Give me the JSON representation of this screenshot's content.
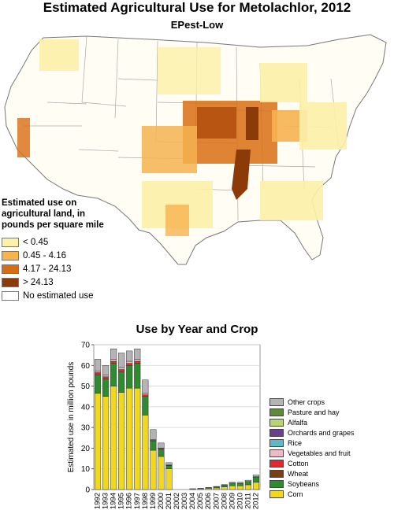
{
  "title": "Estimated Agricultural Use for Metolachlor, 2012",
  "subtitle": "EPest-Low",
  "map_legend": {
    "title_lines": [
      "Estimated use on",
      "agricultural land, in",
      "pounds per square mile"
    ],
    "items": [
      {
        "label": "< 0.45",
        "color": "#fdf0a8"
      },
      {
        "label": "0.45 - 4.16",
        "color": "#f6b350"
      },
      {
        "label": "4.17 - 24.13",
        "color": "#d96d12"
      },
      {
        "label": "> 24.13",
        "color": "#8c3a08"
      },
      {
        "label": "No estimated use",
        "color": "#ffffff"
      }
    ]
  },
  "chart_data": {
    "type": "bar",
    "stacked": true,
    "title": "Use by Year and Crop",
    "xlabel": "",
    "ylabel": "Estimated use in million pounds",
    "ylim": [
      0,
      70
    ],
    "yticks": [
      0,
      10,
      20,
      30,
      40,
      50,
      60,
      70
    ],
    "grid": true,
    "legend_position": "right",
    "categories": [
      "1992",
      "1993",
      "1994",
      "1995",
      "1996",
      "1997",
      "1998",
      "1999",
      "2000",
      "2001",
      "2002",
      "2003",
      "2004",
      "2005",
      "2006",
      "2007",
      "2008",
      "2009",
      "2010",
      "2011",
      "2012"
    ],
    "series": [
      {
        "name": "Corn",
        "color": "#f2d81a",
        "values": [
          46.5,
          45,
          50,
          47,
          49,
          49,
          36,
          19,
          16,
          10,
          0,
          0,
          0.3,
          0.4,
          0.6,
          0.8,
          1.3,
          1.8,
          1.8,
          2.3,
          3.5
        ]
      },
      {
        "name": "Soybeans",
        "color": "#2e8b2e",
        "values": [
          9,
          8.5,
          11,
          10,
          11,
          12,
          9,
          4.5,
          3.5,
          1.5,
          0,
          0,
          0.1,
          0.2,
          0.3,
          0.6,
          0.9,
          1.3,
          1.2,
          1.6,
          2.5
        ]
      },
      {
        "name": "Wheat",
        "color": "#7a3e12",
        "values": [
          0,
          0,
          0,
          0,
          0,
          0,
          0,
          0,
          0,
          0,
          0,
          0,
          0,
          0,
          0,
          0,
          0,
          0,
          0,
          0,
          0
        ]
      },
      {
        "name": "Cotton",
        "color": "#e0282e",
        "values": [
          1,
          1,
          1,
          1,
          1,
          1,
          0.8,
          0.3,
          0.3,
          0.2,
          0,
          0,
          0,
          0,
          0,
          0,
          0,
          0,
          0,
          0,
          0.1
        ]
      },
      {
        "name": "Vegetables and fruit",
        "color": "#f0b8c4",
        "values": [
          0.8,
          0.8,
          1,
          1,
          1,
          1,
          0.8,
          0.4,
          0.3,
          0.2,
          0,
          0,
          0,
          0,
          0,
          0,
          0,
          0,
          0,
          0,
          0.1
        ]
      },
      {
        "name": "Rice",
        "color": "#5fb8c8",
        "values": [
          0,
          0,
          0,
          0,
          0,
          0,
          0,
          0,
          0,
          0,
          0,
          0,
          0,
          0,
          0,
          0,
          0,
          0,
          0,
          0,
          0
        ]
      },
      {
        "name": "Orchards and grapes",
        "color": "#6a3f8f",
        "values": [
          0,
          0,
          0,
          0,
          0,
          0,
          0,
          0,
          0,
          0,
          0,
          0,
          0,
          0,
          0,
          0,
          0,
          0,
          0,
          0,
          0
        ]
      },
      {
        "name": "Alfalfa",
        "color": "#b8d670",
        "values": [
          0,
          0,
          0,
          0,
          0,
          0,
          0,
          0,
          0,
          0,
          0,
          0,
          0,
          0,
          0,
          0,
          0,
          0,
          0,
          0,
          0
        ]
      },
      {
        "name": "Pasture and hay",
        "color": "#5e8a3a",
        "values": [
          0,
          0,
          0,
          0,
          0,
          0,
          0,
          0,
          0,
          0,
          0,
          0,
          0,
          0,
          0,
          0,
          0,
          0,
          0,
          0,
          0
        ]
      },
      {
        "name": "Other crops",
        "color": "#b4b4b4",
        "values": [
          5.7,
          4.7,
          5,
          7,
          5,
          5,
          6.4,
          4.8,
          2.4,
          1.1,
          0,
          0,
          0,
          0,
          0.1,
          0.1,
          0.2,
          0.4,
          0.5,
          0.6,
          0.8
        ]
      }
    ]
  }
}
